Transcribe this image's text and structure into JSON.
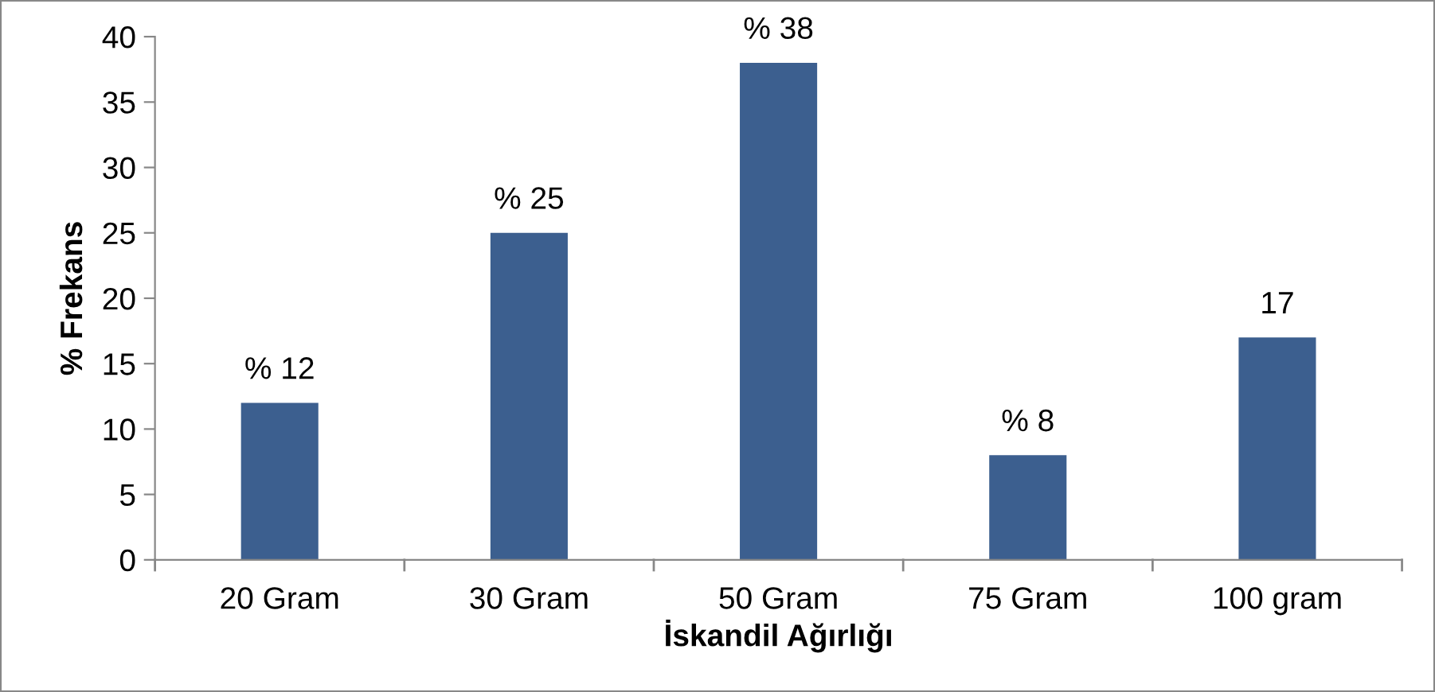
{
  "chart_data": {
    "type": "bar",
    "xlabel": "İskandil Ağırlığı",
    "ylabel": "% Frekans",
    "categories": [
      "20 Gram",
      "30 Gram",
      "50 Gram",
      "75 Gram",
      "100 gram"
    ],
    "values": [
      12,
      25,
      38,
      8,
      17
    ],
    "value_labels": [
      "% 12",
      "% 25",
      "% 38",
      "% 8",
      "17"
    ],
    "color": "#3c5f8f",
    "ylim": [
      0,
      40
    ],
    "yticks": [
      0,
      5,
      10,
      15,
      20,
      25,
      30,
      35,
      40
    ],
    "grid": false,
    "legend": false
  }
}
